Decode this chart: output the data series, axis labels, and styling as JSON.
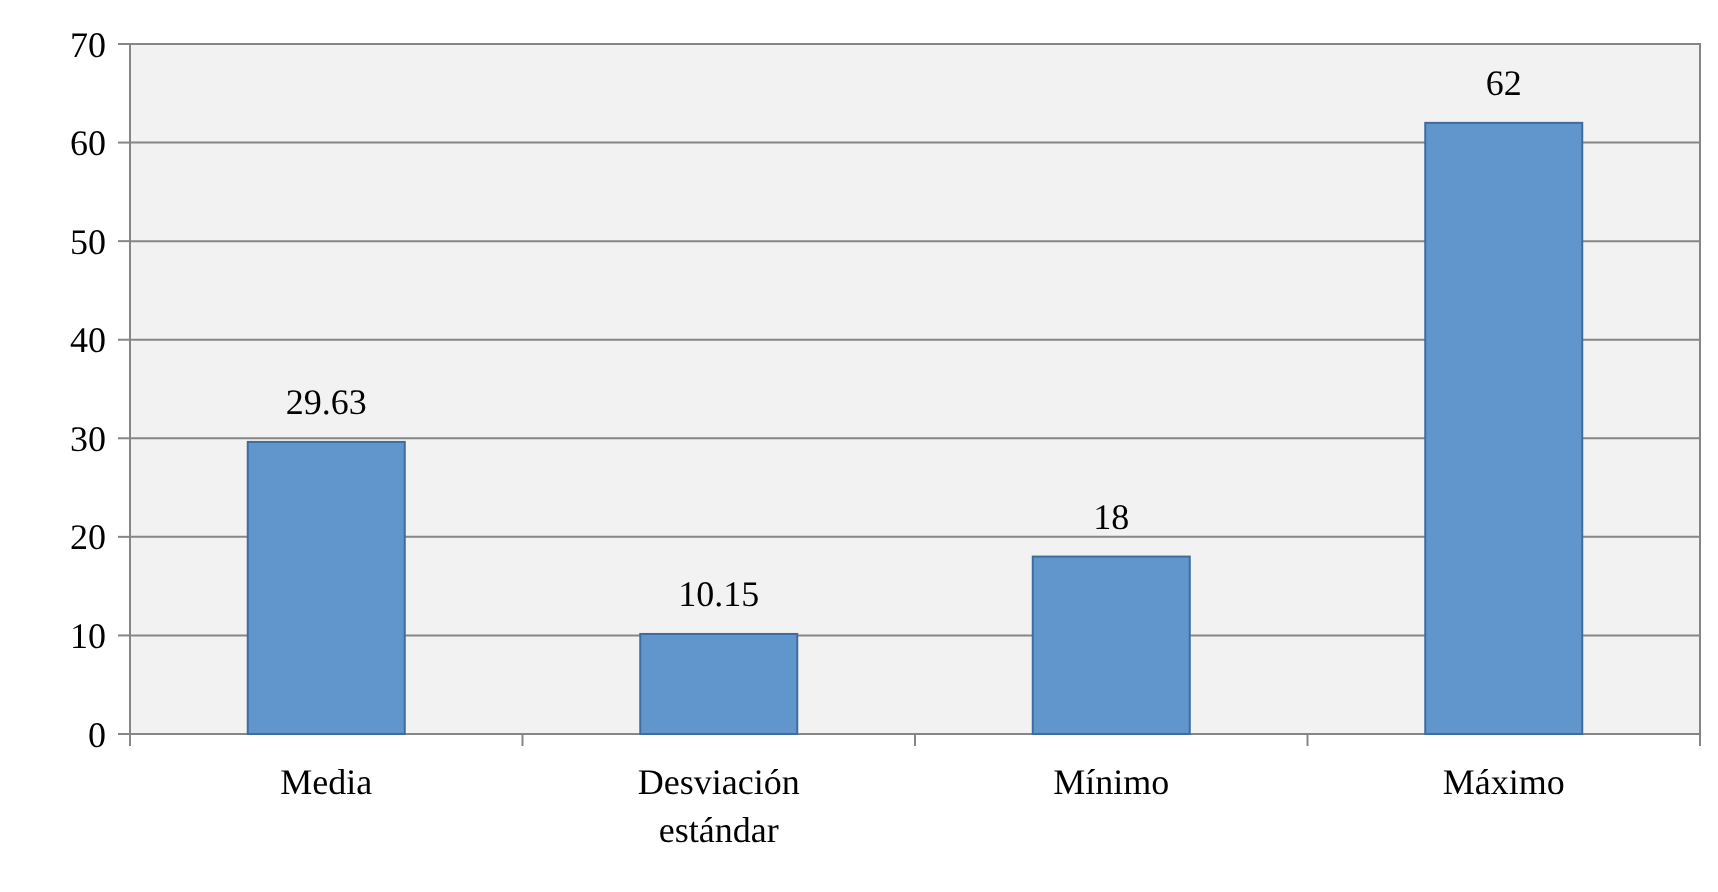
{
  "chart_data": {
    "type": "bar",
    "categories": [
      "Media",
      "Desviación estándar",
      "Mínimo",
      "Máximo"
    ],
    "values": [
      29.63,
      10.15,
      18,
      62
    ],
    "color": "#6096cc",
    "ylim": [
      0,
      70
    ],
    "yticks": [
      0,
      10,
      20,
      30,
      40,
      50,
      60,
      70
    ],
    "grid": "y",
    "data_labels": true
  }
}
